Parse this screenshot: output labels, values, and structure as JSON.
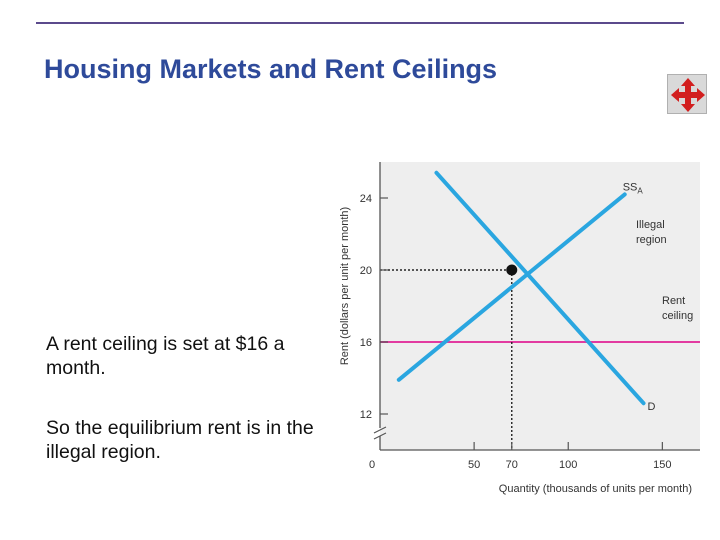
{
  "slide": {
    "title": "Housing Markets and Rent Ceilings",
    "paragraph1": "A rent ceiling is set at $16 a month.",
    "paragraph2": "So the equilibrium rent is in the illegal region.",
    "nav_icon": "move-arrows-icon",
    "accent_color": "#2e4a9a",
    "rule_color": "#5b4a8c"
  },
  "chart_data": {
    "type": "line",
    "xlabel": "Quantity (thousands of units per month)",
    "ylabel": "Rent (dollars per unit per month)",
    "xlim": [
      0,
      170
    ],
    "ylim": [
      10,
      26
    ],
    "x_ticks": [
      50,
      70,
      100,
      150
    ],
    "x_origin_label": "0",
    "y_ticks": [
      12,
      16,
      20,
      24
    ],
    "series": [
      {
        "name": "SS_A",
        "label_main": "SS",
        "label_sub": "A",
        "color": "#2aa6e0",
        "x": [
          10,
          130
        ],
        "y": [
          13.9,
          24.2
        ]
      },
      {
        "name": "D",
        "label_main": "D",
        "label_sub": "",
        "color": "#2aa6e0",
        "x": [
          30,
          140
        ],
        "y": [
          25.4,
          12.6
        ]
      }
    ],
    "rent_ceiling": {
      "value": 16,
      "color": "#e23aa0",
      "label_line1": "Rent",
      "label_line2": "ceiling"
    },
    "equilibrium": {
      "x": 70,
      "y": 20
    },
    "region_label_line1": "Illegal",
    "region_label_line2": "region",
    "grid": false
  }
}
